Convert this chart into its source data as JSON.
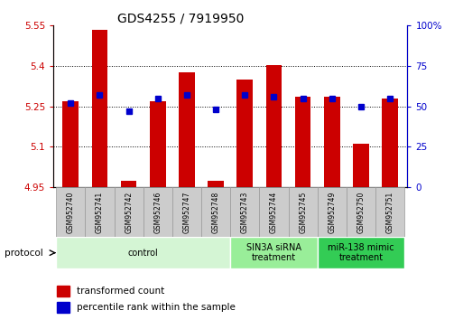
{
  "title": "GDS4255 / 7919950",
  "samples": [
    "GSM952740",
    "GSM952741",
    "GSM952742",
    "GSM952746",
    "GSM952747",
    "GSM952748",
    "GSM952743",
    "GSM952744",
    "GSM952745",
    "GSM952749",
    "GSM952750",
    "GSM952751"
  ],
  "transformed_count": [
    5.27,
    5.535,
    4.975,
    5.27,
    5.375,
    4.975,
    5.35,
    5.405,
    5.285,
    5.285,
    5.11,
    5.28
  ],
  "percentile_rank": [
    52,
    57,
    47,
    55,
    57,
    48,
    57,
    56,
    55,
    55,
    50,
    55
  ],
  "ylim_left": [
    4.95,
    5.55
  ],
  "ylim_right": [
    0,
    100
  ],
  "yticks_left": [
    4.95,
    5.1,
    5.25,
    5.4,
    5.55
  ],
  "yticks_right": [
    0,
    25,
    50,
    75,
    100
  ],
  "ytick_labels_left": [
    "4.95",
    "5.1",
    "5.25",
    "5.4",
    "5.55"
  ],
  "ytick_labels_right": [
    "0",
    "25",
    "50",
    "75",
    "100%"
  ],
  "bar_color": "#cc0000",
  "point_color": "#0000cc",
  "bar_bottom": 4.95,
  "groups": [
    {
      "label": "control",
      "start": 0,
      "end": 6,
      "color": "#d4f5d4"
    },
    {
      "label": "SIN3A siRNA\ntreatment",
      "start": 6,
      "end": 9,
      "color": "#99ee99"
    },
    {
      "label": "miR-138 mimic\ntreatment",
      "start": 9,
      "end": 12,
      "color": "#33cc55"
    }
  ],
  "protocol_label": "protocol",
  "legend_red": "transformed count",
  "legend_blue": "percentile rank within the sample",
  "background_color": "#ffffff",
  "title_fontsize": 10,
  "axis_label_color_left": "#cc0000",
  "axis_label_color_right": "#0000cc",
  "sample_box_color": "#cccccc",
  "sample_box_edge": "#999999"
}
